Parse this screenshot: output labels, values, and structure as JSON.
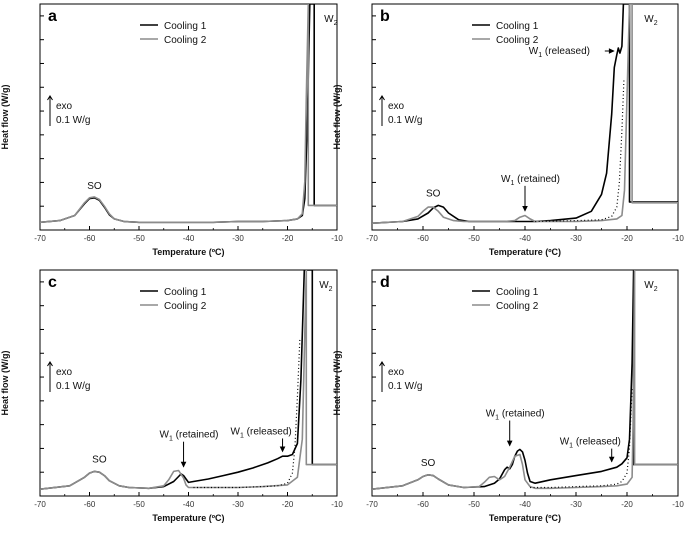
{
  "figure": {
    "x_axis_label": "Temperature (ºC)",
    "y_axis_label": "Heat flow (W/g)",
    "scale_bar": {
      "exo": "exo",
      "value": "0.1 W/g"
    },
    "colors": {
      "cooling1": "#000000",
      "cooling2": "#8c8c8c",
      "dotted": "#000000"
    }
  },
  "chart_data": [
    {
      "panel": "a",
      "type": "line",
      "xlim": [
        -70,
        -10
      ],
      "xticks": [
        -70,
        -60,
        -50,
        -40,
        -30,
        -20,
        -10
      ],
      "xlabel": "Temperature (ºC)",
      "ylabel": "Heat flow (W/g)",
      "legend": [
        "Cooling 1",
        "Cooling 2"
      ],
      "annotations": [
        {
          "text": "SO",
          "x": -59
        },
        {
          "text": "W",
          "sub": "2",
          "x": -13
        }
      ],
      "series": [
        {
          "name": "Cooling 1",
          "x": [
            -70,
            -66,
            -63,
            -61,
            -60,
            -59,
            -58,
            -57,
            -56,
            -55,
            -53,
            -50,
            -45,
            -40,
            -35,
            -30,
            -25,
            -20,
            -18,
            -17,
            -16.5,
            -16,
            -15.5,
            -15.4,
            -14.6,
            -14.6,
            -10
          ],
          "y": [
            0.02,
            0.04,
            0.1,
            0.24,
            0.3,
            0.31,
            0.28,
            0.2,
            0.11,
            0.06,
            0.03,
            0.02,
            0.02,
            0.02,
            0.02,
            0.03,
            0.03,
            0.04,
            0.06,
            0.1,
            0.3,
            1.2,
            2.6,
            2.6,
            2.6,
            0.22,
            0.22
          ]
        },
        {
          "name": "Cooling 2",
          "x": [
            -70,
            -66,
            -63,
            -61,
            -60,
            -59,
            -58,
            -57,
            -56,
            -55,
            -53,
            -50,
            -45,
            -40,
            -35,
            -30,
            -25,
            -20,
            -18,
            -17,
            -16.5,
            -16.2,
            -15.8,
            -15.8,
            -10
          ],
          "y": [
            0.02,
            0.04,
            0.1,
            0.25,
            0.31,
            0.32,
            0.29,
            0.21,
            0.12,
            0.06,
            0.03,
            0.02,
            0.02,
            0.02,
            0.02,
            0.03,
            0.03,
            0.04,
            0.06,
            0.12,
            0.5,
            1.5,
            2.6,
            0.22,
            0.22
          ]
        }
      ]
    },
    {
      "panel": "b",
      "type": "line",
      "xlim": [
        -70,
        -10
      ],
      "xticks": [
        -70,
        -60,
        -50,
        -40,
        -30,
        -20,
        -10
      ],
      "xlabel": "Temperature (ºC)",
      "ylabel": "Heat flow (W/g)",
      "legend": [
        "Cooling 1",
        "Cooling 2"
      ],
      "annotations": [
        {
          "text": "SO",
          "x": -58
        },
        {
          "text": "W",
          "sub": "1",
          "suffix": " (retained)",
          "x": -40
        },
        {
          "text": "W",
          "sub": "1",
          "suffix": " (released)",
          "x": -22
        },
        {
          "text": "W",
          "sub": "2",
          "x": -17
        }
      ],
      "series": [
        {
          "name": "Cooling 1",
          "x": [
            -70,
            -64,
            -61,
            -59,
            -58,
            -57,
            -56,
            -55,
            -53,
            -51,
            -48,
            -45,
            -42,
            -40,
            -38,
            -35,
            -30,
            -27,
            -25,
            -24,
            -23,
            -22.5,
            -22,
            -21.7,
            -21.4,
            -21,
            -20.7,
            -20,
            -19.5,
            -19.5,
            -18.5,
            -18.5,
            -10
          ],
          "y": [
            0.01,
            0.03,
            0.06,
            0.13,
            0.19,
            0.22,
            0.2,
            0.13,
            0.05,
            0.03,
            0.03,
            0.03,
            0.03,
            0.03,
            0.03,
            0.04,
            0.07,
            0.15,
            0.35,
            0.6,
            1.3,
            1.85,
            2.0,
            2.08,
            2.02,
            2.1,
            2.6,
            2.6,
            2.6,
            0.26,
            0.26,
            0.26,
            0.26
          ]
        },
        {
          "name": "Cooling 2",
          "x": [
            -70,
            -64,
            -61,
            -60,
            -59,
            -58,
            -57,
            -56,
            -54,
            -52,
            -48,
            -44,
            -42,
            -41,
            -40,
            -39,
            -38,
            -35,
            -30,
            -25,
            -22,
            -21,
            -20.5,
            -20,
            -19.5,
            -19,
            -19,
            -10
          ],
          "y": [
            0.01,
            0.03,
            0.09,
            0.15,
            0.2,
            0.2,
            0.15,
            0.08,
            0.04,
            0.03,
            0.03,
            0.03,
            0.04,
            0.08,
            0.1,
            0.06,
            0.03,
            0.03,
            0.03,
            0.04,
            0.06,
            0.1,
            0.4,
            1.5,
            2.6,
            2.6,
            0.25,
            0.25
          ]
        },
        {
          "name": "Baseline",
          "dotted": true,
          "x": [
            -38,
            -30,
            -25,
            -23,
            -22,
            -21.5,
            -21,
            -20.6
          ],
          "y": [
            0.03,
            0.04,
            0.05,
            0.09,
            0.2,
            0.5,
            1.1,
            1.7
          ]
        }
      ]
    },
    {
      "panel": "c",
      "type": "line",
      "xlim": [
        -70,
        -10
      ],
      "xticks": [
        -70,
        -60,
        -50,
        -40,
        -30,
        -20,
        -10
      ],
      "xlabel": "Temperature (ºC)",
      "ylabel": "Heat flow (W/g)",
      "legend": [
        "Cooling 1",
        "Cooling 2"
      ],
      "annotations": [
        {
          "text": "SO",
          "x": -58
        },
        {
          "text": "W",
          "sub": "1",
          "suffix": " (retained)",
          "x": -41
        },
        {
          "text": "W",
          "sub": "1",
          "suffix": " (released)",
          "x": -21
        },
        {
          "text": "W",
          "sub": "2",
          "x": -14
        }
      ],
      "series": [
        {
          "name": "Cooling 1",
          "x": [
            -70,
            -64,
            -61,
            -60,
            -59,
            -58,
            -57,
            -56,
            -54,
            -52,
            -48,
            -45,
            -43,
            -42,
            -41.5,
            -41,
            -40.5,
            -40,
            -39,
            -36,
            -33,
            -30,
            -27,
            -24,
            -22,
            -21,
            -20,
            -19,
            -18,
            -17.3,
            -16.6,
            -16.6,
            -15,
            -15,
            -10
          ],
          "y": [
            0.01,
            0.05,
            0.15,
            0.2,
            0.22,
            0.21,
            0.17,
            0.11,
            0.05,
            0.03,
            0.02,
            0.04,
            0.1,
            0.16,
            0.19,
            0.17,
            0.13,
            0.09,
            0.1,
            0.13,
            0.17,
            0.21,
            0.26,
            0.32,
            0.37,
            0.4,
            0.4,
            0.42,
            0.55,
            1.3,
            2.6,
            2.6,
            2.6,
            0.3,
            0.3
          ]
        },
        {
          "name": "Cooling 2",
          "x": [
            -70,
            -64,
            -61,
            -60,
            -59,
            -58,
            -57,
            -56,
            -54,
            -52,
            -48,
            -45,
            -44,
            -43,
            -42,
            -41,
            -40.5,
            -40,
            -38,
            -35,
            -30,
            -25,
            -20,
            -18,
            -17,
            -16.6,
            -16.2,
            -16.2,
            -10
          ],
          "y": [
            0.01,
            0.05,
            0.15,
            0.2,
            0.22,
            0.21,
            0.17,
            0.11,
            0.05,
            0.03,
            0.02,
            0.05,
            0.12,
            0.22,
            0.23,
            0.14,
            0.06,
            0.03,
            0.03,
            0.03,
            0.03,
            0.04,
            0.06,
            0.15,
            0.6,
            1.6,
            2.6,
            0.3,
            0.3
          ]
        },
        {
          "name": "Baseline",
          "dotted": true,
          "x": [
            -39,
            -35,
            -30,
            -25,
            -22,
            -20,
            -19,
            -18.5,
            -18,
            -17.5
          ],
          "y": [
            0.03,
            0.03,
            0.03,
            0.04,
            0.05,
            0.08,
            0.2,
            0.5,
            1.1,
            1.8
          ]
        }
      ]
    },
    {
      "panel": "d",
      "type": "line",
      "xlim": [
        -70,
        -10
      ],
      "xticks": [
        -70,
        -60,
        -50,
        -40,
        -30,
        -20,
        -10
      ],
      "xlabel": "Temperature (ºC)",
      "ylabel": "Heat flow (W/g)",
      "legend": [
        "Cooling 1",
        "Cooling 2"
      ],
      "annotations": [
        {
          "text": "SO",
          "x": -59
        },
        {
          "text": "W",
          "sub": "1",
          "suffix": " (retained)",
          "x": -43
        },
        {
          "text": "W",
          "sub": "1",
          "suffix": " (released)",
          "x": -23
        },
        {
          "text": "W",
          "sub": "2",
          "x": -17
        }
      ],
      "series": [
        {
          "name": "Cooling 1",
          "x": [
            -70,
            -64,
            -61,
            -60,
            -59,
            -58,
            -57,
            -55,
            -52,
            -48,
            -46,
            -45,
            -44,
            -43.5,
            -43,
            -42.5,
            -42,
            -41.5,
            -41,
            -40.5,
            -40,
            -39.5,
            -39,
            -38,
            -35,
            -30,
            -25,
            -22,
            -21,
            -20,
            -19.5,
            -19,
            -18.7,
            -18.7,
            -10
          ],
          "y": [
            0.01,
            0.05,
            0.12,
            0.16,
            0.18,
            0.17,
            0.13,
            0.06,
            0.03,
            0.04,
            0.08,
            0.13,
            0.24,
            0.27,
            0.25,
            0.3,
            0.4,
            0.46,
            0.48,
            0.45,
            0.35,
            0.2,
            0.1,
            0.08,
            0.12,
            0.17,
            0.22,
            0.27,
            0.31,
            0.38,
            0.6,
            1.5,
            2.6,
            0.3,
            0.3
          ]
        },
        {
          "name": "Cooling 2",
          "x": [
            -70,
            -64,
            -61,
            -60,
            -59,
            -58,
            -57,
            -55,
            -52,
            -49,
            -48,
            -47,
            -46,
            -45,
            -44,
            -43,
            -42,
            -41,
            -40.5,
            -40,
            -39,
            -38,
            -35,
            -30,
            -25,
            -22,
            -20,
            -19,
            -18.8,
            -18.5,
            -18.5,
            -10
          ],
          "y": [
            0.01,
            0.05,
            0.12,
            0.16,
            0.18,
            0.17,
            0.13,
            0.06,
            0.03,
            0.04,
            0.09,
            0.15,
            0.16,
            0.12,
            0.16,
            0.27,
            0.4,
            0.42,
            0.3,
            0.12,
            0.04,
            0.02,
            0.02,
            0.03,
            0.04,
            0.05,
            0.07,
            0.15,
            0.8,
            2.6,
            0.3,
            0.3
          ]
        },
        {
          "name": "Baseline",
          "dotted": true,
          "x": [
            -39,
            -35,
            -30,
            -25,
            -22,
            -21,
            -20,
            -19.5,
            -19
          ],
          "y": [
            0.03,
            0.03,
            0.04,
            0.05,
            0.07,
            0.1,
            0.2,
            0.5,
            1.2
          ]
        }
      ]
    }
  ]
}
